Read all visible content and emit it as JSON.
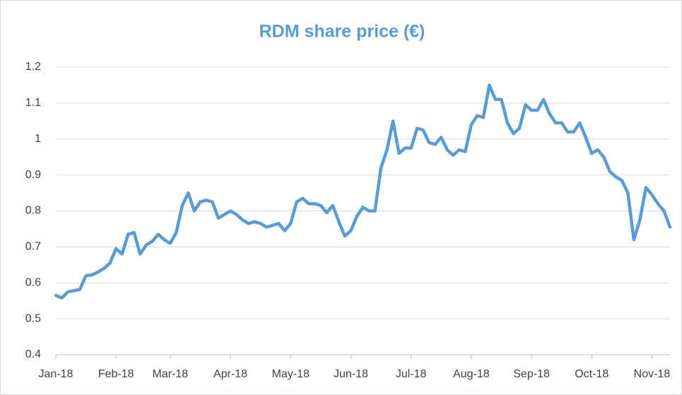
{
  "chart_data": {
    "type": "line",
    "title": "RDM share price (€)",
    "x": [
      "Jan-18",
      null,
      null,
      null,
      null,
      null,
      null,
      null,
      null,
      null,
      "Feb-18",
      null,
      null,
      null,
      null,
      null,
      null,
      null,
      null,
      "Mar-18",
      null,
      null,
      null,
      null,
      null,
      null,
      null,
      null,
      null,
      "Apr-18",
      null,
      null,
      null,
      null,
      null,
      null,
      null,
      null,
      null,
      "May-18",
      null,
      null,
      null,
      null,
      null,
      null,
      null,
      null,
      null,
      "Jun-18",
      null,
      null,
      null,
      null,
      null,
      null,
      null,
      null,
      null,
      "Jul-18",
      null,
      null,
      null,
      null,
      null,
      null,
      null,
      null,
      null,
      "Aug-18",
      null,
      null,
      null,
      null,
      null,
      null,
      null,
      null,
      null,
      "Sep-18",
      null,
      null,
      null,
      null,
      null,
      null,
      null,
      null,
      null,
      "Oct-18",
      null,
      null,
      null,
      null,
      null,
      null,
      null,
      null,
      null,
      "Nov-18",
      null,
      null,
      null
    ],
    "series": [
      {
        "color": "#5b9bd5",
        "values": [
          0.565,
          0.558,
          0.575,
          0.578,
          0.582,
          0.62,
          0.622,
          0.63,
          0.64,
          0.655,
          0.695,
          0.68,
          0.735,
          0.74,
          0.68,
          0.705,
          0.715,
          0.735,
          0.72,
          0.71,
          0.74,
          0.815,
          0.85,
          0.8,
          0.825,
          0.83,
          0.825,
          0.78,
          0.79,
          0.8,
          0.79,
          0.775,
          0.765,
          0.77,
          0.765,
          0.755,
          0.76,
          0.765,
          0.745,
          0.765,
          0.825,
          0.835,
          0.82,
          0.82,
          0.815,
          0.795,
          0.815,
          0.77,
          0.73,
          0.745,
          0.785,
          0.81,
          0.8,
          0.8,
          0.92,
          0.97,
          1.05,
          0.96,
          0.975,
          0.975,
          1.03,
          1.025,
          0.99,
          0.985,
          1.005,
          0.97,
          0.955,
          0.97,
          0.965,
          1.04,
          1.065,
          1.06,
          1.15,
          1.11,
          1.11,
          1.045,
          1.015,
          1.03,
          1.095,
          1.08,
          1.08,
          1.11,
          1.07,
          1.045,
          1.045,
          1.02,
          1.02,
          1.045,
          1.005,
          0.96,
          0.97,
          0.95,
          0.91,
          0.895,
          0.885,
          0.85,
          0.72,
          0.775,
          0.865,
          0.845,
          0.82,
          0.8,
          0.755
        ]
      }
    ],
    "ylim": [
      0.4,
      1.2
    ],
    "yticks": [
      0.4,
      0.5,
      0.6,
      0.7,
      0.8,
      0.9,
      1,
      1.1,
      1.2
    ],
    "grid": true
  }
}
